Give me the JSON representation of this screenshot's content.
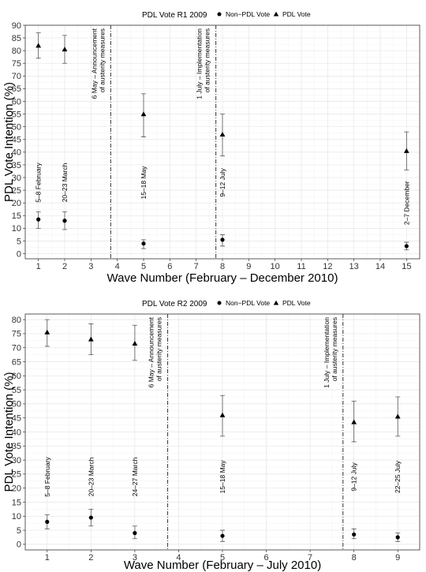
{
  "chart_data": [
    {
      "type": "scatter",
      "legend": {
        "title": "PDL Vote R1 2009",
        "placement": "top",
        "entries": [
          {
            "label": "Non−PDL Vote",
            "marker": "circle"
          },
          {
            "label": "PDL Vote",
            "marker": "triangle"
          }
        ]
      },
      "xlabel": "Wave Number (February – December 2010)",
      "ylabel": "PDL Vote Intention (%)",
      "xlim": [
        0.5,
        15.5
      ],
      "ylim": [
        -2,
        90
      ],
      "x_ticks": [
        1,
        2,
        3,
        4,
        5,
        6,
        7,
        8,
        9,
        10,
        11,
        12,
        13,
        14,
        15
      ],
      "y_ticks": [
        0,
        5,
        10,
        15,
        20,
        25,
        30,
        35,
        40,
        45,
        50,
        55,
        60,
        65,
        70,
        75,
        80,
        85,
        90
      ],
      "grid": true,
      "series": [
        {
          "name": "Non−PDL Vote",
          "marker": "circle",
          "points": [
            {
              "x": 1,
              "y": 13.5,
              "lo": 10,
              "hi": 16.5
            },
            {
              "x": 2,
              "y": 13,
              "lo": 9.5,
              "hi": 16.5
            },
            {
              "x": 5,
              "y": 4,
              "lo": 2,
              "hi": 5.5
            },
            {
              "x": 8,
              "y": 5.5,
              "lo": 3,
              "hi": 7.5
            },
            {
              "x": 15,
              "y": 3,
              "lo": 1.5,
              "hi": 4.5
            }
          ]
        },
        {
          "name": "PDL Vote",
          "marker": "triangle",
          "points": [
            {
              "x": 1,
              "y": 82,
              "lo": 77,
              "hi": 87
            },
            {
              "x": 2,
              "y": 80.5,
              "lo": 75,
              "hi": 86
            },
            {
              "x": 5,
              "y": 55,
              "lo": 46,
              "hi": 63
            },
            {
              "x": 8,
              "y": 47,
              "lo": 38.5,
              "hi": 55
            },
            {
              "x": 15,
              "y": 40.5,
              "lo": 33,
              "hi": 48
            }
          ]
        }
      ],
      "vertical_lines": [
        {
          "x": 3.75,
          "label_lines": [
            "6 May – Announcement",
            "of austerity measures"
          ]
        },
        {
          "x": 7.75,
          "label_lines": [
            "1 July – Implementation",
            "of austerity measures"
          ]
        }
      ],
      "annotations": [
        {
          "x": 1,
          "y": 28,
          "text": "5–8 February"
        },
        {
          "x": 2,
          "y": 28,
          "text": "20–23 March"
        },
        {
          "x": 5,
          "y": 28,
          "text": "15–18 May"
        },
        {
          "x": 8,
          "y": 28,
          "text": "9–12 July"
        },
        {
          "x": 15,
          "y": 20,
          "text": "2–7 December"
        }
      ]
    },
    {
      "type": "scatter",
      "legend": {
        "title": "PDL Vote R2 2009",
        "placement": "top",
        "entries": [
          {
            "label": "Non−PDL Vote",
            "marker": "circle"
          },
          {
            "label": "PDL Vote",
            "marker": "triangle"
          }
        ]
      },
      "xlabel": "Wave Number (February – July 2010)",
      "ylabel": "PDL Vote Intention (%)",
      "xlim": [
        0.5,
        9.5
      ],
      "ylim": [
        -2,
        82
      ],
      "x_ticks": [
        1,
        2,
        3,
        4,
        5,
        6,
        7,
        8,
        9
      ],
      "y_ticks": [
        0,
        5,
        10,
        15,
        20,
        25,
        30,
        35,
        40,
        45,
        50,
        55,
        60,
        65,
        70,
        75,
        80
      ],
      "grid": true,
      "series": [
        {
          "name": "Non−PDL Vote",
          "marker": "circle",
          "points": [
            {
              "x": 1,
              "y": 8,
              "lo": 5.5,
              "hi": 10.5
            },
            {
              "x": 2,
              "y": 9.5,
              "lo": 6.5,
              "hi": 12.5
            },
            {
              "x": 3,
              "y": 4,
              "lo": 2,
              "hi": 6.5
            },
            {
              "x": 5,
              "y": 3,
              "lo": 1,
              "hi": 5
            },
            {
              "x": 8,
              "y": 3.5,
              "lo": 2,
              "hi": 5.5
            },
            {
              "x": 9,
              "y": 2.5,
              "lo": 1,
              "hi": 4
            }
          ]
        },
        {
          "name": "PDL Vote",
          "marker": "triangle",
          "points": [
            {
              "x": 1,
              "y": 75.5,
              "lo": 70.5,
              "hi": 80
            },
            {
              "x": 2,
              "y": 73,
              "lo": 67.5,
              "hi": 78.5
            },
            {
              "x": 3,
              "y": 71.5,
              "lo": 65.5,
              "hi": 78
            },
            {
              "x": 5,
              "y": 46,
              "lo": 38.5,
              "hi": 53
            },
            {
              "x": 8,
              "y": 43.5,
              "lo": 36.5,
              "hi": 51
            },
            {
              "x": 9,
              "y": 45.5,
              "lo": 38.5,
              "hi": 52.5
            }
          ]
        }
      ],
      "vertical_lines": [
        {
          "x": 3.75,
          "label_lines": [
            "6 May – Announcement",
            "of austerity measures"
          ]
        },
        {
          "x": 7.75,
          "label_lines": [
            "1 July – Implementation",
            "of austerity measures"
          ]
        }
      ],
      "annotations": [
        {
          "x": 1,
          "y": 24,
          "text": "5–8 February"
        },
        {
          "x": 2,
          "y": 24,
          "text": "20–23 March"
        },
        {
          "x": 3,
          "y": 24,
          "text": "24–27 March"
        },
        {
          "x": 5,
          "y": 24,
          "text": "15–18 May"
        },
        {
          "x": 8,
          "y": 24,
          "text": "9–12 July"
        },
        {
          "x": 9,
          "y": 24,
          "text": "22–25 July"
        }
      ]
    }
  ]
}
